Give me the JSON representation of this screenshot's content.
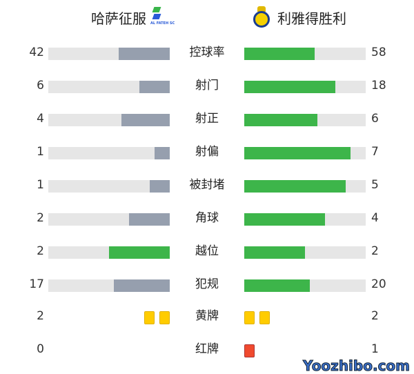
{
  "home": {
    "name": "哈萨征服",
    "logo_text": "AL FATEH SC"
  },
  "away": {
    "name": "利雅得胜利"
  },
  "colors": {
    "win": "#3db54a",
    "lose": "#969fae",
    "yellow": "#ffcc00",
    "red": "#f04a2e"
  },
  "stats": [
    {
      "label": "控球率",
      "home": 42,
      "away": 58
    },
    {
      "label": "射门",
      "home": 6,
      "away": 18
    },
    {
      "label": "射正",
      "home": 4,
      "away": 6
    },
    {
      "label": "射偏",
      "home": 1,
      "away": 7
    },
    {
      "label": "被封堵",
      "home": 1,
      "away": 5
    },
    {
      "label": "角球",
      "home": 2,
      "away": 4
    },
    {
      "label": "越位",
      "home": 2,
      "away": 2
    },
    {
      "label": "犯规",
      "home": 17,
      "away": 20
    }
  ],
  "cards": [
    {
      "label": "黄牌",
      "home": 2,
      "away": 2,
      "type": "yellow"
    },
    {
      "label": "红牌",
      "home": 0,
      "away": 1,
      "type": "red"
    }
  ],
  "watermark": "Yoozhibo.com"
}
